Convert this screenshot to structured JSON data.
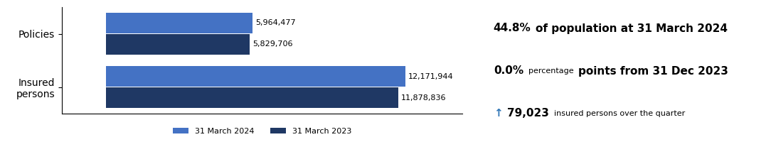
{
  "chart_data": {
    "type": "bar",
    "orientation": "horizontal",
    "categories": [
      "Policies",
      "Insured\npersons"
    ],
    "series": [
      {
        "name": "31 March 2024",
        "color": "#4472C4",
        "values": [
          5964477,
          12171944
        ],
        "value_labels": [
          "5,964,477",
          "12,171,944"
        ]
      },
      {
        "name": "31 March 2023",
        "color": "#1F3864",
        "values": [
          5829706,
          11878836
        ],
        "value_labels": [
          "5,829,706",
          "11,878,836"
        ]
      }
    ],
    "xlim": [
      -1800000,
      14500000
    ],
    "data_labels": true,
    "tick_labels": "y",
    "legend": "lower center",
    "annotations": [
      [
        "44.8%",
        "of population at 31 March 2024"
      ],
      [
        "0.0%",
        "percentage",
        "points from 31 Dec 2023"
      ],
      [
        "↑",
        "79,023",
        "insured persons over the quarter"
      ]
    ]
  }
}
